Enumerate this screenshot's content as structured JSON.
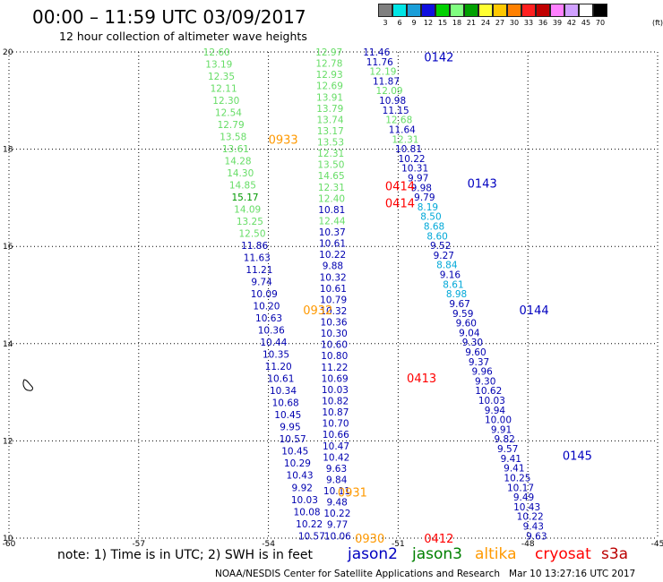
{
  "header": {
    "title": "00:00 – 11:59 UTC 03/09/2017",
    "subtitle": "12 hour collection of altimeter wave heights"
  },
  "colorbar": {
    "labels": [
      "3",
      "6",
      "9",
      "12",
      "15",
      "18",
      "21",
      "24",
      "27",
      "30",
      "33",
      "36",
      "39",
      "42",
      "45",
      "70"
    ],
    "unit": "(ft)",
    "colors": [
      "#7f7f7f",
      "#00e5e5",
      "#1a9ed8",
      "#1010e0",
      "#00d000",
      "#80ff80",
      "#00a000",
      "#ffff30",
      "#ffc800",
      "#ff8000",
      "#ff2020",
      "#c00000",
      "#ff80ff",
      "#d0a0ff",
      "#ffffff",
      "#000000"
    ]
  },
  "chart_data": {
    "type": "scatter",
    "title": "00:00 – 11:59 UTC 03/09/2017",
    "subtitle": "12 hour collection of altimeter wave heights",
    "xlabel": "",
    "ylabel": "",
    "xlim": [
      -60,
      -45
    ],
    "ylim": [
      10,
      20
    ],
    "x_ticks": [
      "-60",
      "-57",
      "-54",
      "-51",
      "-48",
      "-45"
    ],
    "y_ticks": [
      "20",
      "18",
      "16",
      "14",
      "12",
      "10"
    ],
    "y_tick_values": [
      20,
      18,
      16,
      14,
      12,
      10
    ],
    "grid": true,
    "series_colors": {
      "jason2": "#0000c0",
      "jason3": "#008000",
      "altika": "#ff9900",
      "cryosat": "#ff0000",
      "s3a": "#bb0000"
    },
    "value_colors": {
      "b": "#0000b0",
      "c": "#00a8d8",
      "l": "#66dd66",
      "g": "#009900"
    },
    "tracks": [
      {
        "series": "altika",
        "x0": -55.2,
        "x1": -53.0,
        "y0": 20,
        "y1": 10.0,
        "yend": 10.05,
        "values": [
          [
            "12.60",
            "l"
          ],
          [
            "13.19",
            "l"
          ],
          [
            "12.35",
            "l"
          ],
          [
            "12.11",
            "l"
          ],
          [
            "12.30",
            "l"
          ],
          [
            "12.54",
            "l"
          ],
          [
            "12.79",
            "l"
          ],
          [
            "13.58",
            "l"
          ],
          [
            "13.61",
            "l"
          ],
          [
            "14.28",
            "l"
          ],
          [
            "14.30",
            "l"
          ],
          [
            "14.85",
            "l"
          ],
          [
            "15.17",
            "g"
          ],
          [
            "14.09",
            "l"
          ],
          [
            "13.25",
            "l"
          ],
          [
            "12.50",
            "l"
          ],
          [
            "11.86",
            "b"
          ],
          [
            "11.63",
            "b"
          ],
          [
            "11.21",
            "b"
          ],
          [
            "9.74",
            "b"
          ],
          [
            "10.09",
            "b"
          ],
          [
            "10.20",
            "b"
          ],
          [
            "10.63",
            "b"
          ],
          [
            "10.36",
            "b"
          ],
          [
            "10.44",
            "b"
          ],
          [
            "10.35",
            "b"
          ],
          [
            "11.20",
            "b"
          ],
          [
            "10.61",
            "b"
          ],
          [
            "10.34",
            "b"
          ],
          [
            "10.68",
            "b"
          ],
          [
            "10.45",
            "b"
          ],
          [
            "9.95",
            "b"
          ],
          [
            "10.57",
            "b"
          ],
          [
            "10.45",
            "b"
          ],
          [
            "10.29",
            "b"
          ],
          [
            "10.43",
            "b"
          ],
          [
            "9.92",
            "b"
          ],
          [
            "10.03",
            "b"
          ],
          [
            "10.08",
            "b"
          ],
          [
            "10.22",
            "b"
          ],
          [
            "10.57",
            "b"
          ]
        ]
      },
      {
        "series": "cryosat",
        "x0": -52.6,
        "x1": -52.4,
        "y0": 20,
        "y1": 10.0,
        "yend": 10.05,
        "values": [
          [
            "12.97",
            "l"
          ],
          [
            "12.78",
            "l"
          ],
          [
            "12.93",
            "l"
          ],
          [
            "12.69",
            "l"
          ],
          [
            "13.91",
            "l"
          ],
          [
            "13.79",
            "l"
          ],
          [
            "13.74",
            "l"
          ],
          [
            "13.17",
            "l"
          ],
          [
            "13.53",
            "l"
          ],
          [
            "12.31",
            "l"
          ],
          [
            "13.50",
            "l"
          ],
          [
            "14.65",
            "l"
          ],
          [
            "12.31",
            "l"
          ],
          [
            "12.40",
            "l"
          ],
          [
            "10.81",
            "b"
          ],
          [
            "12.44",
            "l"
          ],
          [
            "10.37",
            "b"
          ],
          [
            "10.61",
            "b"
          ],
          [
            "10.22",
            "b"
          ],
          [
            "9.88",
            "b"
          ],
          [
            "10.32",
            "b"
          ],
          [
            "10.61",
            "b"
          ],
          [
            "10.79",
            "b"
          ],
          [
            "10.32",
            "b"
          ],
          [
            "10.36",
            "b"
          ],
          [
            "10.30",
            "b"
          ],
          [
            "10.60",
            "b"
          ],
          [
            "10.80",
            "b"
          ],
          [
            "11.22",
            "b"
          ],
          [
            "10.69",
            "b"
          ],
          [
            "10.03",
            "b"
          ],
          [
            "10.82",
            "b"
          ],
          [
            "10.87",
            "b"
          ],
          [
            "10.70",
            "b"
          ],
          [
            "10.66",
            "b"
          ],
          [
            "10.47",
            "b"
          ],
          [
            "10.42",
            "b"
          ],
          [
            "9.63",
            "b"
          ],
          [
            "9.84",
            "b"
          ],
          [
            "10.11",
            "b"
          ],
          [
            "9.48",
            "b"
          ],
          [
            "10.22",
            "b"
          ],
          [
            "9.77",
            "b"
          ],
          [
            "10.06",
            "b"
          ]
        ]
      },
      {
        "series": "jason2",
        "x0": -51.5,
        "x1": -47.8,
        "y0": 20,
        "y1": 10.05,
        "yend": 10.05,
        "values": [
          [
            "11.46",
            "b"
          ],
          [
            "11.76",
            "b"
          ],
          [
            "12.19",
            "l"
          ],
          [
            "11.87",
            "b"
          ],
          [
            "12.09",
            "l"
          ],
          [
            "10.98",
            "b"
          ],
          [
            "11.15",
            "b"
          ],
          [
            "12.68",
            "l"
          ],
          [
            "11.64",
            "b"
          ],
          [
            "12.31",
            "l"
          ],
          [
            "10.81",
            "b"
          ],
          [
            "10.22",
            "b"
          ],
          [
            "10.31",
            "b"
          ],
          [
            "9.97",
            "b"
          ],
          [
            "9.98",
            "b"
          ],
          [
            "9.79",
            "b"
          ],
          [
            "8.19",
            "c"
          ],
          [
            "8.50",
            "c"
          ],
          [
            "8.68",
            "c"
          ],
          [
            "8.60",
            "c"
          ],
          [
            "9.52",
            "b"
          ],
          [
            "9.27",
            "b"
          ],
          [
            "8.84",
            "c"
          ],
          [
            "9.16",
            "b"
          ],
          [
            "8.61",
            "c"
          ],
          [
            "8.98",
            "c"
          ],
          [
            "9.67",
            "b"
          ],
          [
            "9.59",
            "b"
          ],
          [
            "9.60",
            "b"
          ],
          [
            "9.04",
            "b"
          ],
          [
            "9.30",
            "b"
          ],
          [
            "9.60",
            "b"
          ],
          [
            "9.37",
            "b"
          ],
          [
            "9.96",
            "b"
          ],
          [
            "9.30",
            "b"
          ],
          [
            "10.62",
            "b"
          ],
          [
            "10.03",
            "b"
          ],
          [
            "9.94",
            "b"
          ],
          [
            "10.00",
            "b"
          ],
          [
            "9.91",
            "b"
          ],
          [
            "9.82",
            "b"
          ],
          [
            "9.57",
            "b"
          ],
          [
            "9.41",
            "b"
          ],
          [
            "9.41",
            "b"
          ],
          [
            "10.25",
            "b"
          ],
          [
            "10.17",
            "b"
          ],
          [
            "9.49",
            "b"
          ],
          [
            "10.43",
            "b"
          ],
          [
            "10.22",
            "b"
          ],
          [
            "9.43",
            "b"
          ],
          [
            "9.63",
            "b"
          ]
        ]
      }
    ],
    "annotations": [
      {
        "text": "0142",
        "x": -50.4,
        "y": 19.9,
        "series": "jason2"
      },
      {
        "text": "0143",
        "x": -49.4,
        "y": 17.3,
        "series": "jason2"
      },
      {
        "text": "0144",
        "x": -48.2,
        "y": 14.7,
        "series": "jason2"
      },
      {
        "text": "0145",
        "x": -47.2,
        "y": 11.7,
        "series": "jason2"
      },
      {
        "text": "0933",
        "x": -54.0,
        "y": 18.2,
        "series": "altika"
      },
      {
        "text": "0932",
        "x": -53.2,
        "y": 14.7,
        "series": "altika"
      },
      {
        "text": "0931",
        "x": -52.4,
        "y": 10.95,
        "series": "altika"
      },
      {
        "text": "0930",
        "x": -52.0,
        "y": 10.0,
        "series": "altika"
      },
      {
        "text": "0414",
        "x": -51.3,
        "y": 17.25,
        "series": "cryosat"
      },
      {
        "text": "0414",
        "x": -51.3,
        "y": 16.9,
        "series": "cryosat"
      },
      {
        "text": "0413",
        "x": -50.8,
        "y": 13.3,
        "series": "cryosat"
      },
      {
        "text": "0412",
        "x": -50.4,
        "y": 10.0,
        "series": "cryosat"
      }
    ]
  },
  "legend": {
    "note": "note: 1) Time is in UTC; 2) SWH is in feet",
    "satellites": [
      {
        "name": "jason2",
        "color": "#0000c0"
      },
      {
        "name": "jason3",
        "color": "#008000"
      },
      {
        "name": "altika",
        "color": "#ff9900"
      },
      {
        "name": "cryosat",
        "color": "#ff0000"
      },
      {
        "name": "s3a",
        "color": "#bb0000"
      }
    ]
  },
  "footer": {
    "credit": "NOAA/NESDIS Center for Satellite Applications and Research",
    "timestamp": "Mar 10 13:27:16 UTC 2017"
  }
}
